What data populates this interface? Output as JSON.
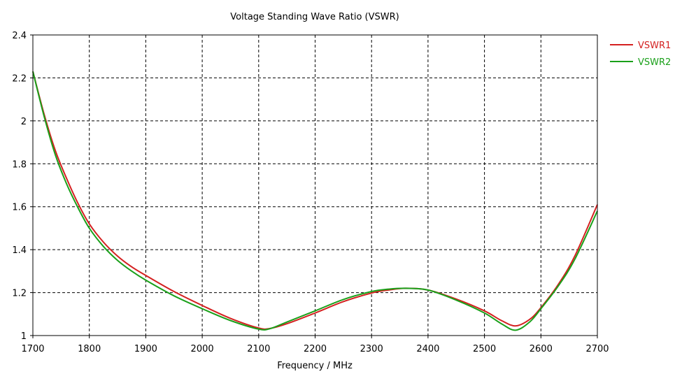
{
  "chart_data": {
    "type": "line",
    "title": "Voltage Standing Wave Ratio (VSWR)",
    "xlabel": "Frequency / MHz",
    "ylabel": "",
    "xlim": [
      1700,
      2700
    ],
    "ylim": [
      1,
      2.4
    ],
    "xticks": [
      1700,
      1800,
      1900,
      2000,
      2100,
      2200,
      2300,
      2400,
      2500,
      2600,
      2700
    ],
    "yticks": [
      1,
      1.2,
      1.4,
      1.6,
      1.8,
      2,
      2.2,
      2.4
    ],
    "xtick_labels": [
      "1700",
      "1800",
      "1900",
      "2000",
      "2100",
      "2200",
      "2300",
      "2400",
      "2500",
      "2600",
      "2700"
    ],
    "ytick_labels": [
      "1",
      "1.2",
      "1.4",
      "1.6",
      "1.8",
      "2",
      "2.2",
      "2.4"
    ],
    "grid": true,
    "legend_position": "right-top",
    "series": [
      {
        "name": "VSWR1",
        "color": "#d42020",
        "x": [
          1700,
          1720,
          1740,
          1760,
          1780,
          1800,
          1825,
          1850,
          1875,
          1900,
          1950,
          2000,
          2050,
          2100,
          2120,
          2150,
          2200,
          2250,
          2300,
          2330,
          2360,
          2400,
          2450,
          2500,
          2530,
          2555,
          2580,
          2600,
          2630,
          2660,
          2700
        ],
        "y": [
          2.23,
          2.03,
          1.86,
          1.73,
          1.615,
          1.52,
          1.435,
          1.37,
          1.32,
          1.28,
          1.205,
          1.14,
          1.08,
          1.035,
          1.033,
          1.055,
          1.105,
          1.158,
          1.198,
          1.212,
          1.22,
          1.212,
          1.17,
          1.115,
          1.07,
          1.045,
          1.075,
          1.13,
          1.235,
          1.37,
          1.61
        ]
      },
      {
        "name": "VSWR2",
        "color": "#1aa01a",
        "x": [
          1700,
          1720,
          1740,
          1760,
          1780,
          1800,
          1825,
          1850,
          1875,
          1900,
          1950,
          2000,
          2050,
          2100,
          2120,
          2150,
          2200,
          2250,
          2300,
          2330,
          2360,
          2400,
          2450,
          2500,
          2530,
          2555,
          2580,
          2600,
          2630,
          2660,
          2700
        ],
        "y": [
          2.23,
          2.02,
          1.84,
          1.705,
          1.595,
          1.5,
          1.415,
          1.35,
          1.3,
          1.258,
          1.185,
          1.125,
          1.07,
          1.03,
          1.032,
          1.063,
          1.115,
          1.168,
          1.205,
          1.216,
          1.22,
          1.212,
          1.165,
          1.105,
          1.055,
          1.025,
          1.063,
          1.125,
          1.228,
          1.355,
          1.58
        ]
      }
    ]
  }
}
